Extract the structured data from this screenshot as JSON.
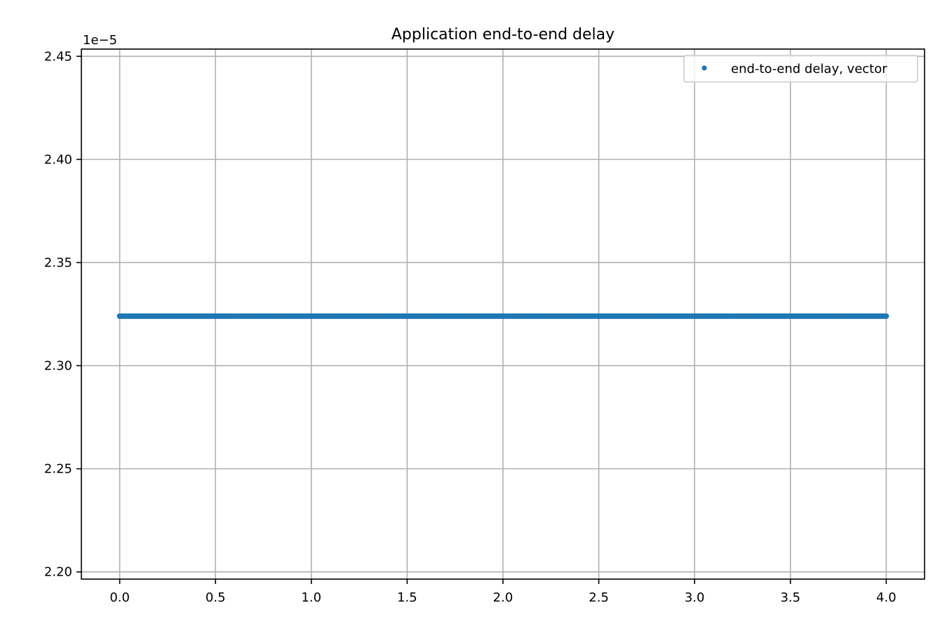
{
  "chart_data": {
    "type": "scatter",
    "title": "Application end-to-end delay",
    "xlabel": "",
    "ylabel": "",
    "y_offset_label": "1e−5",
    "y_scale_factor": 1e-05,
    "xlim": [
      -0.2,
      4.2
    ],
    "ylim": [
      2.1965,
      2.4535
    ],
    "x_ticks": [
      0.0,
      0.5,
      1.0,
      1.5,
      2.0,
      2.5,
      3.0,
      3.5,
      4.0
    ],
    "x_tick_labels": [
      "0.0",
      "0.5",
      "1.0",
      "1.5",
      "2.0",
      "2.5",
      "3.0",
      "3.5",
      "4.0"
    ],
    "y_ticks": [
      2.2,
      2.25,
      2.3,
      2.35,
      2.4,
      2.45
    ],
    "y_tick_labels": [
      "2.20",
      "2.25",
      "2.30",
      "2.35",
      "2.40",
      "2.45"
    ],
    "grid": true,
    "legend_position": "top-right",
    "series": [
      {
        "name": "end-to-end delay, vector",
        "color": "#1f77b4",
        "marker": "point",
        "x_start": 0.0,
        "x_end": 4.0,
        "x_step": 0.01,
        "y_constant": 2.324
      }
    ]
  }
}
